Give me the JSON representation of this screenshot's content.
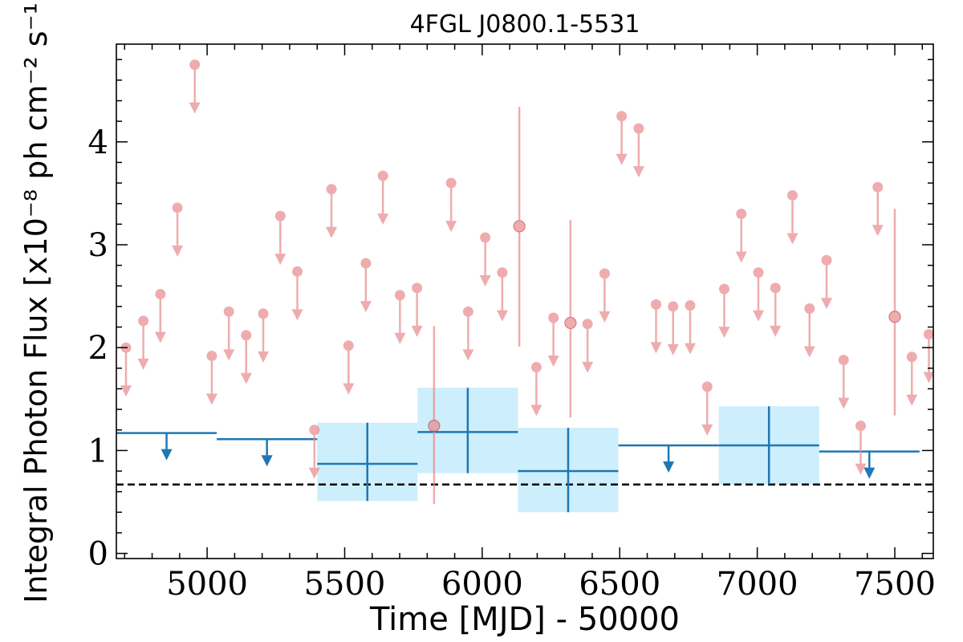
{
  "chart_data": {
    "type": "scatter",
    "title": "4FGL J0800.1-5531",
    "xlabel": "Time [MJD] - 50000",
    "ylabel": "Integral Photon Flux [x10⁻⁸ ph cm⁻² s⁻¹]",
    "xlim": [
      4670,
      7640
    ],
    "ylim": [
      -0.05,
      4.95
    ],
    "x_ticks": [
      5000,
      5500,
      6000,
      6500,
      7000,
      7500
    ],
    "y_ticks": [
      0,
      1,
      2,
      3,
      4
    ],
    "grid": false,
    "reference_line": {
      "y": 0.67,
      "style": "dashed",
      "color": "#000000"
    },
    "colors": {
      "monthly": "#e8898d",
      "yearly": "#1f77b4",
      "yearly_band": "#cdeefc"
    },
    "monthly_upper_limits": [
      {
        "x": 4705,
        "y": 2.0
      },
      {
        "x": 4768,
        "y": 2.26
      },
      {
        "x": 4830,
        "y": 2.52
      },
      {
        "x": 4892,
        "y": 3.36
      },
      {
        "x": 4955,
        "y": 4.75
      },
      {
        "x": 5017,
        "y": 1.92
      },
      {
        "x": 5079,
        "y": 2.35
      },
      {
        "x": 5142,
        "y": 2.12
      },
      {
        "x": 5204,
        "y": 2.33
      },
      {
        "x": 5266,
        "y": 3.28
      },
      {
        "x": 5328,
        "y": 2.74
      },
      {
        "x": 5390,
        "y": 1.2
      },
      {
        "x": 5452,
        "y": 3.54
      },
      {
        "x": 5514,
        "y": 2.02
      },
      {
        "x": 5577,
        "y": 2.82
      },
      {
        "x": 5639,
        "y": 3.67
      },
      {
        "x": 5701,
        "y": 2.51
      },
      {
        "x": 5763,
        "y": 2.58
      },
      {
        "x": 5887,
        "y": 3.6
      },
      {
        "x": 5949,
        "y": 2.35
      },
      {
        "x": 6011,
        "y": 3.07
      },
      {
        "x": 6073,
        "y": 2.73
      },
      {
        "x": 6197,
        "y": 1.81
      },
      {
        "x": 6259,
        "y": 2.29
      },
      {
        "x": 6383,
        "y": 2.23
      },
      {
        "x": 6445,
        "y": 2.72
      },
      {
        "x": 6507,
        "y": 4.25
      },
      {
        "x": 6569,
        "y": 4.13
      },
      {
        "x": 6632,
        "y": 2.42
      },
      {
        "x": 6694,
        "y": 2.4
      },
      {
        "x": 6756,
        "y": 2.41
      },
      {
        "x": 6818,
        "y": 1.62
      },
      {
        "x": 6880,
        "y": 2.57
      },
      {
        "x": 6942,
        "y": 3.3
      },
      {
        "x": 7004,
        "y": 2.73
      },
      {
        "x": 7066,
        "y": 2.58
      },
      {
        "x": 7128,
        "y": 3.48
      },
      {
        "x": 7190,
        "y": 2.38
      },
      {
        "x": 7252,
        "y": 2.85
      },
      {
        "x": 7314,
        "y": 1.88
      },
      {
        "x": 7376,
        "y": 1.24
      },
      {
        "x": 7438,
        "y": 3.56
      },
      {
        "x": 7562,
        "y": 1.91
      },
      {
        "x": 7624,
        "y": 2.13
      }
    ],
    "monthly_detections": [
      {
        "x": 5825,
        "y": 1.24,
        "ylo": 0.48,
        "yhi": 2.21
      },
      {
        "x": 6135,
        "y": 3.18,
        "ylo": 2.01,
        "yhi": 4.34
      },
      {
        "x": 6321,
        "y": 2.24,
        "ylo": 1.32,
        "yhi": 3.24
      },
      {
        "x": 7500,
        "y": 2.3,
        "ylo": 1.34,
        "yhi": 3.35
      }
    ],
    "yearly_upper_limits": [
      {
        "x0": 4670,
        "x1": 5035,
        "y": 1.17
      },
      {
        "x0": 5035,
        "x1": 5400,
        "y": 1.11
      },
      {
        "x0": 6495,
        "x1": 6860,
        "y": 1.05
      },
      {
        "x0": 7225,
        "x1": 7590,
        "y": 0.99
      }
    ],
    "yearly_detections": [
      {
        "x0": 5400,
        "x1": 5765,
        "y": 0.87,
        "ylo": 0.51,
        "yhi": 1.27
      },
      {
        "x0": 5765,
        "x1": 6130,
        "y": 1.18,
        "ylo": 0.78,
        "yhi": 1.61
      },
      {
        "x0": 6130,
        "x1": 6495,
        "y": 0.8,
        "ylo": 0.4,
        "yhi": 1.22
      },
      {
        "x0": 6860,
        "x1": 7225,
        "y": 1.05,
        "ylo": 0.67,
        "yhi": 1.43
      }
    ]
  }
}
